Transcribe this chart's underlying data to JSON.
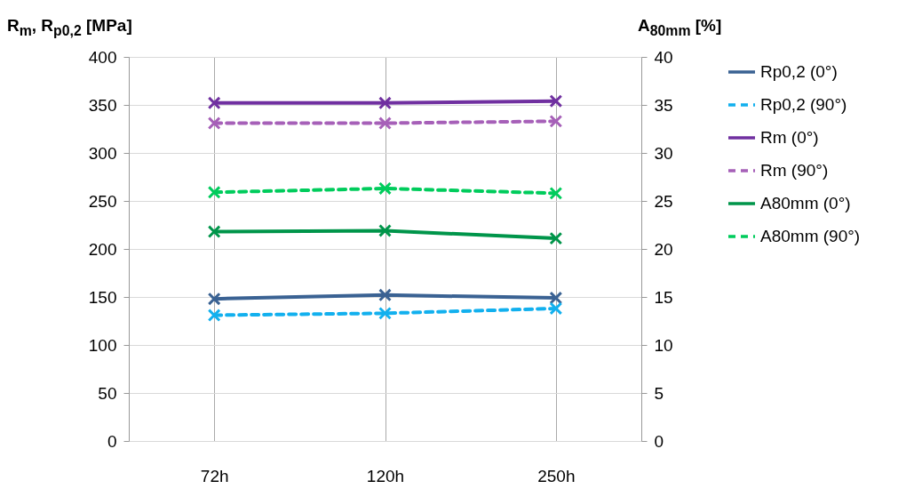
{
  "chart_data": {
    "type": "line",
    "xlabel": null,
    "ylabel": "R$_{m}$, R$_{p0,2}$ [MPa]",
    "y2label": "A$_{80mm}$ [%]",
    "categories": [
      "72h",
      "120h",
      "250h"
    ],
    "ylim": [
      0,
      400
    ],
    "yticks": [
      0,
      50,
      100,
      150,
      200,
      250,
      300,
      350,
      400
    ],
    "y2lim": [
      0,
      40
    ],
    "y2ticks": [
      0,
      5,
      10,
      15,
      20,
      25,
      30,
      35,
      40
    ],
    "grid": true,
    "legend": "right",
    "marker": "cross",
    "series": [
      {
        "name": "Rp0,2 (0°)",
        "color": "#3a6293",
        "line_style": "solid",
        "values": [
          148,
          152,
          149
        ]
      },
      {
        "name": "Rp0,2 (90°)",
        "color": "#12b0ee",
        "line_style": "dashed",
        "values": [
          131,
          133,
          138
        ]
      },
      {
        "name": "Rm (0°)",
        "color": "#7030a0",
        "line_style": "solid",
        "values": [
          352,
          352,
          354
        ]
      },
      {
        "name": "Rm (90°)",
        "color": "#a660b8",
        "line_style": "dashed",
        "values": [
          331,
          331,
          333
        ]
      },
      {
        "name": "A80mm (0°)",
        "color": "#00954a",
        "line_style": "solid",
        "axis": "y2",
        "values": [
          21.8,
          21.9,
          21.1
        ]
      },
      {
        "name": "A80mm (90°)",
        "color": "#00cc5c",
        "line_style": "dashed",
        "axis": "y2",
        "values": [
          25.9,
          26.3,
          25.8
        ]
      }
    ]
  }
}
